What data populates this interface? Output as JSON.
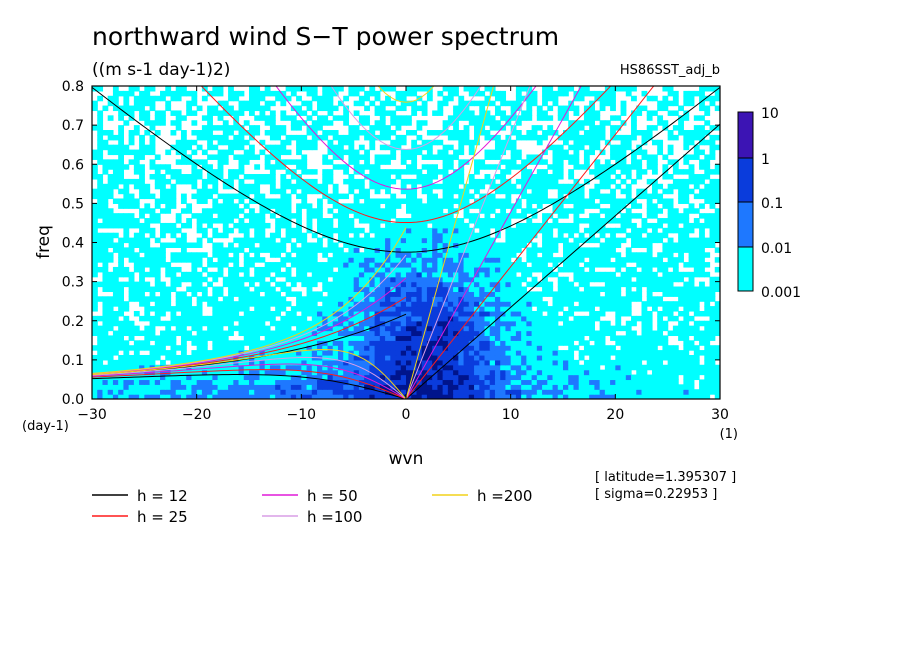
{
  "chart_data": {
    "type": "heatmap",
    "title": "northward wind S−T power spectrum",
    "subtitle": "((m s-1 day-1)2)",
    "dataset_label": "HS86SST_adj_b",
    "xlabel": "wvn",
    "ylabel": "freq",
    "x_unit": "(1)",
    "y_unit": "(day-1)",
    "xlim": [
      -30,
      30
    ],
    "ylim": [
      0,
      0.8
    ],
    "x_ticks": [
      -30,
      -20,
      -10,
      0,
      10,
      20,
      30
    ],
    "x_tick_labels": [
      "−30",
      "−20",
      "−10",
      "0",
      "10",
      "20",
      "30"
    ],
    "y_ticks": [
      0,
      0.1,
      0.2,
      0.3,
      0.4,
      0.5,
      0.6,
      0.7,
      0.8
    ],
    "y_tick_labels": [
      "0.0",
      "0.1",
      "0.2",
      "0.3",
      "0.4",
      "0.5",
      "0.6",
      "0.7",
      "0.8"
    ],
    "colorbar": {
      "levels": [
        0.001,
        0.01,
        0.1,
        1,
        10
      ],
      "labels": [
        "0.001",
        "0.01",
        "0.1",
        "1",
        "10"
      ],
      "colors": [
        "#00ffff",
        "#1e78ff",
        "#0a3cdc",
        "#00148c",
        "#3c14b4"
      ]
    },
    "dispersion_curves": {
      "equivalent_depths": [
        12,
        25,
        50,
        100,
        200
      ],
      "labels": [
        "h = 12",
        "h = 25",
        "h = 50",
        "h =100",
        "h =200"
      ],
      "colors": [
        "#000000",
        "#ff1a1a",
        "#e01ad8",
        "#d89ee6",
        "#f2d21a"
      ]
    },
    "annotations": [
      "[ latitude=1.395307 ]",
      "[ sigma=0.22953 ]"
    ]
  }
}
